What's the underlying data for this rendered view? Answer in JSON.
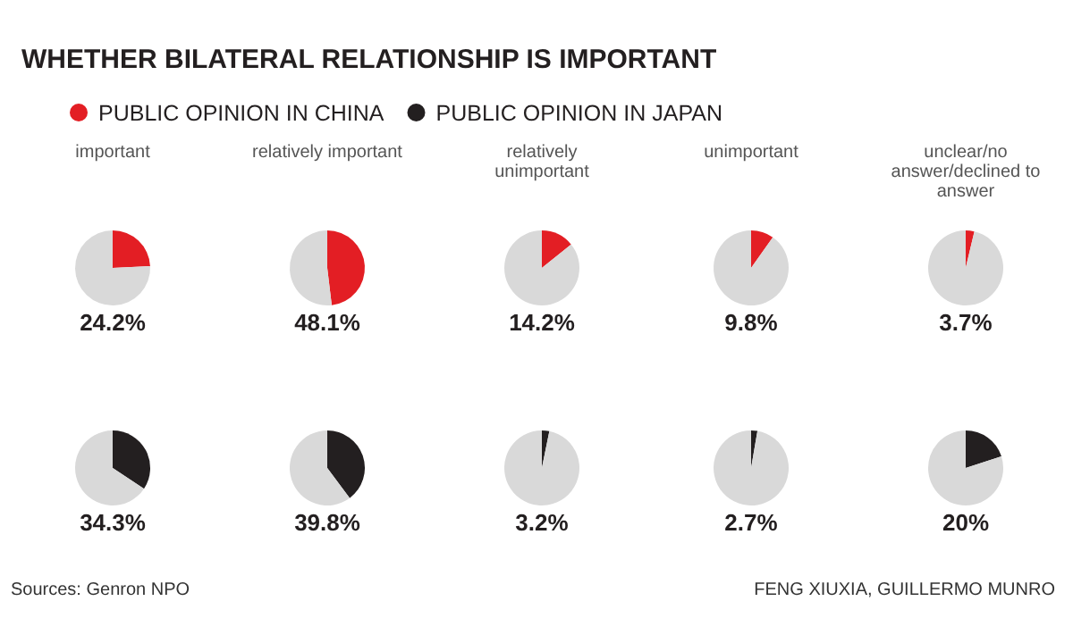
{
  "chart_data": [
    {
      "type": "other",
      "title": "WHETHER BILATERAL RELATIONSHIP IS IMPORTANT",
      "categories": [
        "PUBLIC OPINION IN CHINA",
        "PUBLIC OPINION IN JAPAN"
      ],
      "colors": [
        "#e31e24",
        "#231f20"
      ],
      "annotations": [
        "Sources: Genron NPO",
        "FENG XIUXIA, GUILLERMO MUNRO"
      ]
    },
    {
      "type": "pie",
      "title": "important",
      "categories": [
        null,
        null
      ],
      "values": [
        24.2,
        75.8
      ],
      "colors": [
        "#e31e24",
        "#d9d9d9"
      ],
      "annotations": [
        "24.2%"
      ]
    },
    {
      "type": "pie",
      "title": "relatively important",
      "categories": [
        null,
        null
      ],
      "values": [
        48.1,
        51.9
      ],
      "colors": [
        "#e31e24",
        "#d9d9d9"
      ],
      "annotations": [
        "48.1%"
      ]
    },
    {
      "type": "pie",
      "title": "relatively unimportant",
      "categories": [
        null,
        null
      ],
      "values": [
        14.2,
        85.8
      ],
      "colors": [
        "#e31e24",
        "#d9d9d9"
      ],
      "annotations": [
        "14.2%"
      ]
    },
    {
      "type": "pie",
      "title": "unimportant",
      "categories": [
        null,
        null
      ],
      "values": [
        9.8,
        90.2
      ],
      "colors": [
        "#e31e24",
        "#d9d9d9"
      ],
      "annotations": [
        "9.8%"
      ]
    },
    {
      "type": "pie",
      "title": "unclear/no answer/declined to answer",
      "categories": [
        null,
        null
      ],
      "values": [
        3.7,
        96.3
      ],
      "colors": [
        "#e31e24",
        "#d9d9d9"
      ],
      "annotations": [
        "3.7%"
      ]
    },
    {
      "type": "pie",
      "categories": [
        null,
        null
      ],
      "values": [
        34.3,
        65.7
      ],
      "colors": [
        "#231f20",
        "#d9d9d9"
      ],
      "annotations": [
        "34.3%"
      ]
    },
    {
      "type": "pie",
      "categories": [
        null,
        null
      ],
      "values": [
        39.8,
        60.2
      ],
      "colors": [
        "#231f20",
        "#d9d9d9"
      ],
      "annotations": [
        "39.8%"
      ]
    },
    {
      "type": "pie",
      "categories": [
        null,
        null
      ],
      "values": [
        3.2,
        96.8
      ],
      "colors": [
        "#231f20",
        "#d9d9d9"
      ],
      "annotations": [
        "3.2%"
      ]
    },
    {
      "type": "pie",
      "categories": [
        null,
        null
      ],
      "values": [
        2.7,
        97.3
      ],
      "colors": [
        "#231f20",
        "#d9d9d9"
      ],
      "annotations": [
        "2.7%"
      ]
    },
    {
      "type": "pie",
      "categories": [
        null,
        null
      ],
      "values": [
        20,
        80
      ],
      "colors": [
        "#231f20",
        "#d9d9d9"
      ],
      "annotations": [
        "20%"
      ]
    }
  ]
}
